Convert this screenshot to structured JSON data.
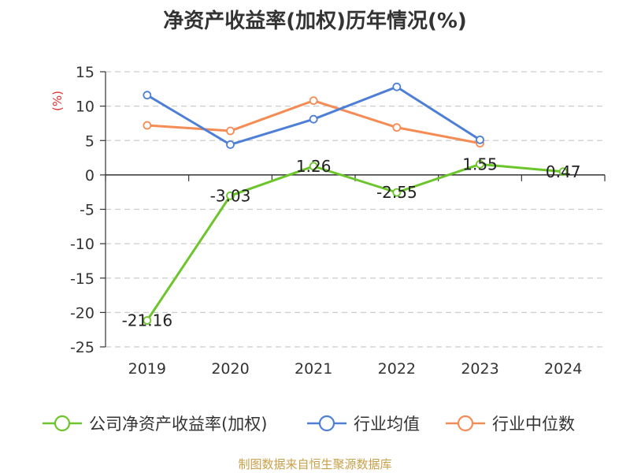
{
  "chart_data": {
    "type": "line",
    "title": "净资产收益率(加权)历年情况(%)",
    "ylabel": "(%)",
    "categories": [
      "2019",
      "2020",
      "2021",
      "2022",
      "2023",
      "2024"
    ],
    "ylim": [
      -25,
      15
    ],
    "yticks": [
      "15",
      "10",
      "5",
      "0",
      "-5",
      "-10",
      "-15",
      "-20",
      "-25"
    ],
    "grid": true,
    "legend_position": "bottom",
    "series": [
      {
        "name": "公司净资产收益率(加权)",
        "color": "#6cc52a",
        "values": [
          -21.16,
          -3.03,
          1.26,
          -2.55,
          1.55,
          0.47
        ],
        "labels": [
          "-21.16",
          "-3.03",
          "1.26",
          "-2.55",
          "1.55",
          "0.47"
        ]
      },
      {
        "name": "行业均值",
        "color": "#4e7fd6",
        "values": [
          11.6,
          4.4,
          8.1,
          12.8,
          5.1,
          null
        ]
      },
      {
        "name": "行业中位数",
        "color": "#f58c55",
        "values": [
          7.2,
          6.4,
          10.8,
          6.9,
          4.6,
          null
        ]
      }
    ]
  },
  "footer": {
    "source": "制图数据来自恒生聚源数据库"
  }
}
